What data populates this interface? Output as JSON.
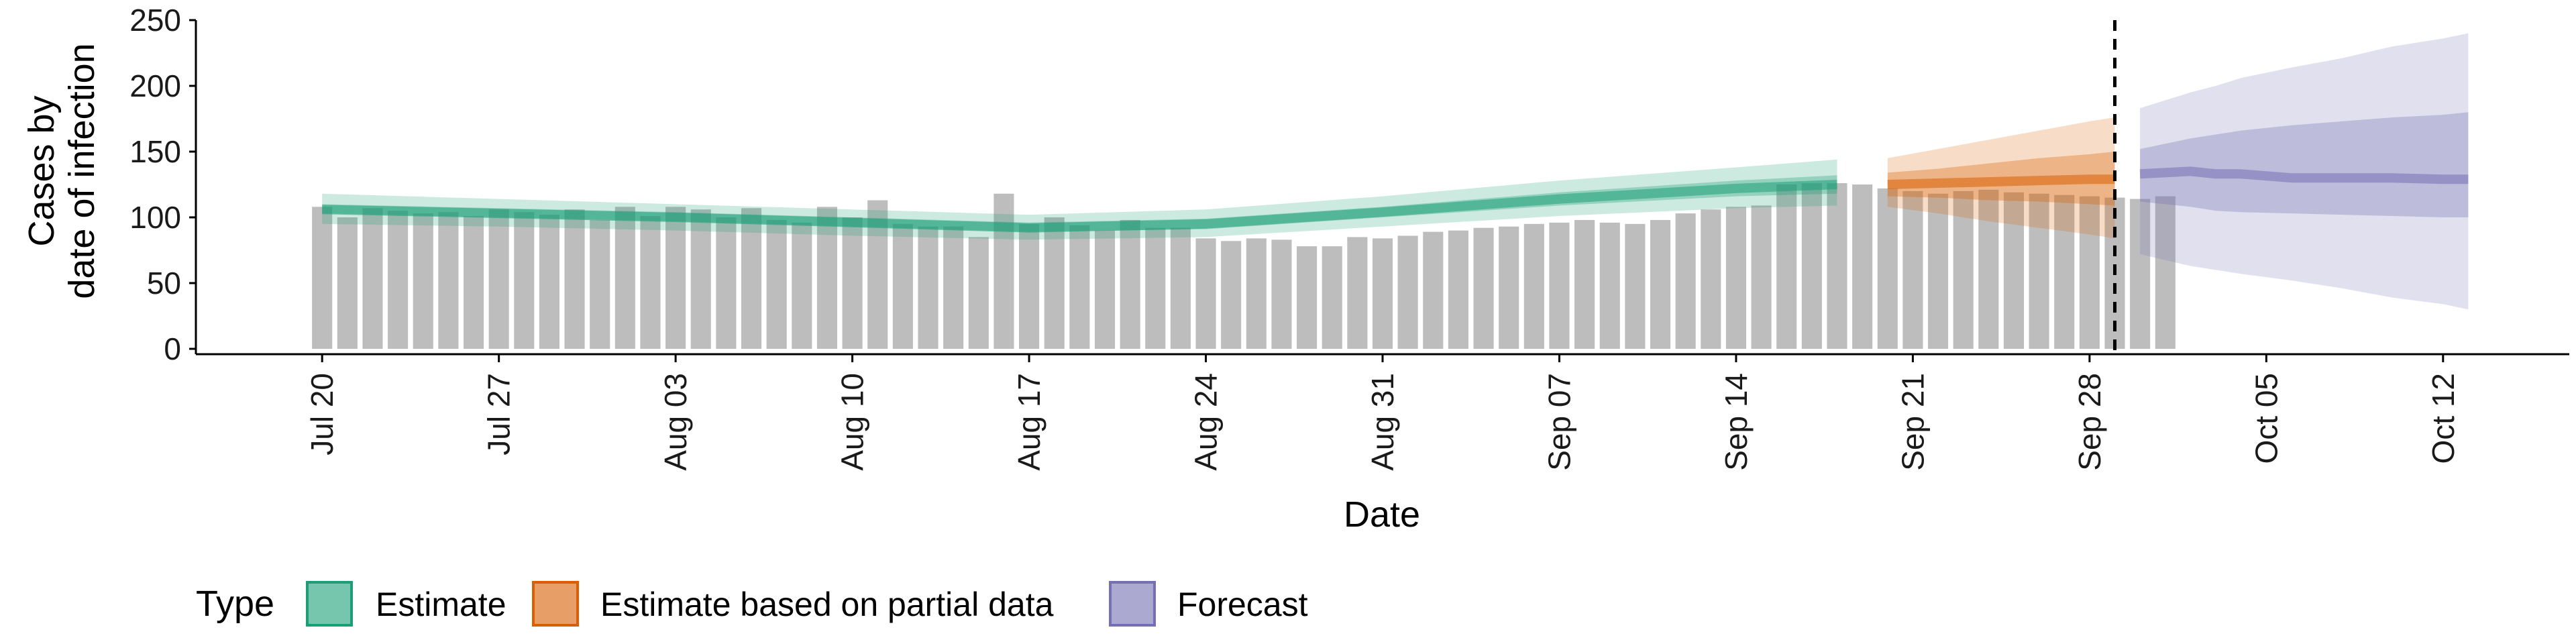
{
  "chart_data": {
    "type": "bar",
    "xlabel": "Date",
    "ylabel_line1": "Cases by",
    "ylabel_line2": "date of infection",
    "ylim": [
      0,
      250
    ],
    "yticks": [
      0,
      50,
      100,
      150,
      200,
      250
    ],
    "xlim": [
      "2020-07-15",
      "2020-10-17"
    ],
    "xticks": [
      "2020-07-20",
      "2020-07-27",
      "2020-08-03",
      "2020-08-10",
      "2020-08-17",
      "2020-08-24",
      "2020-08-31",
      "2020-09-07",
      "2020-09-14",
      "2020-09-21",
      "2020-09-28",
      "2020-10-05",
      "2020-10-12"
    ],
    "xtick_labels": [
      "Jul 20",
      "Jul 27",
      "Aug 03",
      "Aug 10",
      "Aug 17",
      "Aug 24",
      "Aug 31",
      "Sep 07",
      "Sep 14",
      "Sep 21",
      "Sep 28",
      "Oct 05",
      "Oct 12"
    ],
    "forecast_line_date": "2020-09-29",
    "bars": {
      "start_date": "2020-07-20",
      "color": "#bdbdbd",
      "values": [
        108,
        100,
        107,
        105,
        103,
        104,
        101,
        106,
        104,
        102,
        106,
        98,
        108,
        101,
        108,
        106,
        100,
        107,
        98,
        96,
        108,
        100,
        113,
        95,
        93,
        93,
        85,
        118,
        95,
        100,
        94,
        90,
        98,
        92,
        92,
        84,
        82,
        84,
        83,
        78,
        78,
        85,
        84,
        86,
        89,
        90,
        92,
        93,
        95,
        96,
        98,
        96,
        95,
        98,
        103,
        106,
        108,
        109,
        125,
        126,
        126,
        125,
        122,
        120,
        118,
        120,
        121,
        119,
        118,
        117,
        116,
        115,
        114,
        116
      ]
    },
    "series": [
      {
        "name": "Estimate",
        "color": "#1b9e77",
        "dates": [
          "2020-07-20",
          "2020-07-27",
          "2020-08-03",
          "2020-08-10",
          "2020-08-17",
          "2020-08-24",
          "2020-08-31",
          "2020-09-07",
          "2020-09-14",
          "2020-09-18"
        ],
        "median": [
          106,
          103,
          100,
          96,
          92,
          95,
          104,
          114,
          122,
          125
        ],
        "inner": [
          [
            103,
            110
          ],
          [
            100,
            107
          ],
          [
            97,
            104
          ],
          [
            93,
            100
          ],
          [
            89,
            96
          ],
          [
            91,
            99
          ],
          [
            100,
            108
          ],
          [
            109,
            119
          ],
          [
            116,
            128
          ],
          [
            118,
            132
          ]
        ],
        "outer": [
          [
            95,
            118
          ],
          [
            93,
            114
          ],
          [
            90,
            110
          ],
          [
            86,
            106
          ],
          [
            83,
            102
          ],
          [
            85,
            106
          ],
          [
            93,
            116
          ],
          [
            101,
            128
          ],
          [
            107,
            138
          ],
          [
            109,
            144
          ]
        ]
      },
      {
        "name": "Estimate based on partial data",
        "color": "#d95f02",
        "dates": [
          "2020-09-20",
          "2020-09-22",
          "2020-09-24",
          "2020-09-26",
          "2020-09-28",
          "2020-09-29"
        ],
        "median": [
          125,
          126,
          127,
          128,
          129,
          129
        ],
        "inner": [
          [
            116,
            134
          ],
          [
            115,
            137
          ],
          [
            113,
            141
          ],
          [
            112,
            145
          ],
          [
            110,
            148
          ],
          [
            109,
            150
          ]
        ],
        "outer": [
          [
            108,
            145
          ],
          [
            103,
            152
          ],
          [
            97,
            159
          ],
          [
            92,
            166
          ],
          [
            87,
            173
          ],
          [
            84,
            176
          ]
        ]
      },
      {
        "name": "Forecast",
        "color": "#7570b3",
        "dates": [
          "2020-09-30",
          "2020-10-02",
          "2020-10-03",
          "2020-10-04",
          "2020-10-06",
          "2020-10-08",
          "2020-10-10",
          "2020-10-12",
          "2020-10-13"
        ],
        "median": [
          133,
          135,
          133,
          133,
          130,
          130,
          130,
          129,
          129
        ],
        "inner": [
          [
            112,
            152
          ],
          [
            108,
            160
          ],
          [
            105,
            163
          ],
          [
            104,
            166
          ],
          [
            103,
            170
          ],
          [
            102,
            173
          ],
          [
            101,
            176
          ],
          [
            100,
            178
          ],
          [
            100,
            180
          ]
        ],
        "outer": [
          [
            72,
            183
          ],
          [
            63,
            195
          ],
          [
            60,
            200
          ],
          [
            57,
            206
          ],
          [
            52,
            214
          ],
          [
            46,
            221
          ],
          [
            39,
            230
          ],
          [
            34,
            236
          ],
          [
            30,
            240
          ]
        ]
      }
    ],
    "legend": {
      "title": "Type",
      "position": "bottom",
      "items": [
        {
          "label": "Estimate",
          "color": "#1b9e77"
        },
        {
          "label": "Estimate based on partial data",
          "color": "#d95f02"
        },
        {
          "label": "Forecast",
          "color": "#7570b3"
        }
      ]
    }
  }
}
